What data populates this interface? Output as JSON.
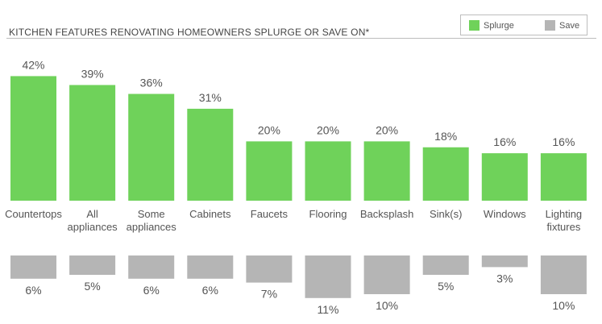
{
  "chart_data": {
    "type": "bar",
    "title": "KITCHEN FEATURES RENOVATING HOMEOWNERS SPLURGE OR SAVE ON*",
    "categories": [
      [
        "Countertops"
      ],
      [
        "All",
        "appliances"
      ],
      [
        "Some",
        "appliances"
      ],
      [
        "Cabinets"
      ],
      [
        "Faucets"
      ],
      [
        "Flooring"
      ],
      [
        "Backsplash"
      ],
      [
        "Sink(s)"
      ],
      [
        "Windows"
      ],
      [
        "Lighting",
        "fixtures"
      ]
    ],
    "series": [
      {
        "name": "Splurge",
        "color": "#6fd25a",
        "values": [
          42,
          39,
          36,
          31,
          20,
          20,
          20,
          18,
          16,
          16
        ],
        "labels": [
          "42%",
          "39%",
          "36%",
          "31%",
          "20%",
          "20%",
          "20%",
          "18%",
          "16%",
          "16%"
        ]
      },
      {
        "name": "Save",
        "color": "#b5b5b5",
        "values": [
          6,
          5,
          6,
          6,
          7,
          11,
          10,
          5,
          3,
          10
        ],
        "labels": [
          "6%",
          "5%",
          "6%",
          "6%",
          "7%",
          "11%",
          "10%",
          "5%",
          "3%",
          "10%"
        ]
      }
    ],
    "legend": {
      "position": "top-right"
    }
  }
}
